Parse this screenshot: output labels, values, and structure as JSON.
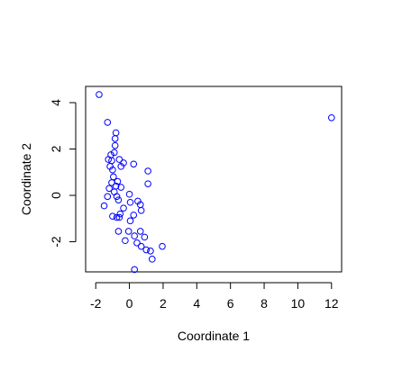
{
  "chart_data": {
    "type": "scatter",
    "title": "",
    "xlabel": "Coordinate 1",
    "ylabel": "Coordinate 2",
    "xlim": [
      -2.6,
      12.6
    ],
    "ylim": [
      -3.3,
      4.7
    ],
    "x_ticks": [
      -2,
      0,
      2,
      4,
      6,
      8,
      10,
      12
    ],
    "y_ticks": [
      -2,
      0,
      2,
      4
    ],
    "grid": false,
    "legend": "none",
    "marker": "open-circle",
    "point_color": "#0000ff",
    "points": [
      {
        "x": -1.8,
        "y": 4.35
      },
      {
        "x": -1.3,
        "y": 3.15
      },
      {
        "x": -0.8,
        "y": 2.7
      },
      {
        "x": -0.85,
        "y": 2.45
      },
      {
        "x": -0.85,
        "y": 2.15
      },
      {
        "x": -0.9,
        "y": 1.85
      },
      {
        "x": -1.1,
        "y": 1.75
      },
      {
        "x": -1.25,
        "y": 1.55
      },
      {
        "x": -1.05,
        "y": 1.5
      },
      {
        "x": -0.6,
        "y": 1.55
      },
      {
        "x": -0.35,
        "y": 1.4
      },
      {
        "x": 0.25,
        "y": 1.35
      },
      {
        "x": -0.5,
        "y": 1.25
      },
      {
        "x": -1.15,
        "y": 1.25
      },
      {
        "x": -1.0,
        "y": 1.1
      },
      {
        "x": 1.1,
        "y": 1.05
      },
      {
        "x": -0.95,
        "y": 0.8
      },
      {
        "x": -0.7,
        "y": 0.6
      },
      {
        "x": -1.05,
        "y": 0.55
      },
      {
        "x": 1.1,
        "y": 0.5
      },
      {
        "x": -0.8,
        "y": 0.4
      },
      {
        "x": -0.5,
        "y": 0.35
      },
      {
        "x": -1.2,
        "y": 0.3
      },
      {
        "x": -0.9,
        "y": 0.15
      },
      {
        "x": 0.0,
        "y": 0.05
      },
      {
        "x": -1.3,
        "y": -0.05
      },
      {
        "x": -0.75,
        "y": -0.05
      },
      {
        "x": -0.65,
        "y": -0.2
      },
      {
        "x": 0.5,
        "y": -0.25
      },
      {
        "x": 0.05,
        "y": -0.3
      },
      {
        "x": 0.65,
        "y": -0.4
      },
      {
        "x": -1.5,
        "y": -0.45
      },
      {
        "x": -0.35,
        "y": -0.55
      },
      {
        "x": 0.7,
        "y": -0.65
      },
      {
        "x": -0.55,
        "y": -0.8
      },
      {
        "x": 0.25,
        "y": -0.85
      },
      {
        "x": -1.0,
        "y": -0.9
      },
      {
        "x": -0.75,
        "y": -0.95
      },
      {
        "x": -0.6,
        "y": -0.95
      },
      {
        "x": 0.05,
        "y": -1.1
      },
      {
        "x": -0.65,
        "y": -1.55
      },
      {
        "x": -0.05,
        "y": -1.55
      },
      {
        "x": 0.65,
        "y": -1.55
      },
      {
        "x": 0.3,
        "y": -1.75
      },
      {
        "x": 0.9,
        "y": -1.8
      },
      {
        "x": -0.25,
        "y": -1.95
      },
      {
        "x": 0.45,
        "y": -2.05
      },
      {
        "x": 0.7,
        "y": -2.2
      },
      {
        "x": 1.95,
        "y": -2.2
      },
      {
        "x": 1.0,
        "y": -2.35
      },
      {
        "x": 1.25,
        "y": -2.4
      },
      {
        "x": 1.35,
        "y": -2.75
      },
      {
        "x": 0.3,
        "y": -3.2
      },
      {
        "x": 12.0,
        "y": 3.35
      }
    ]
  }
}
